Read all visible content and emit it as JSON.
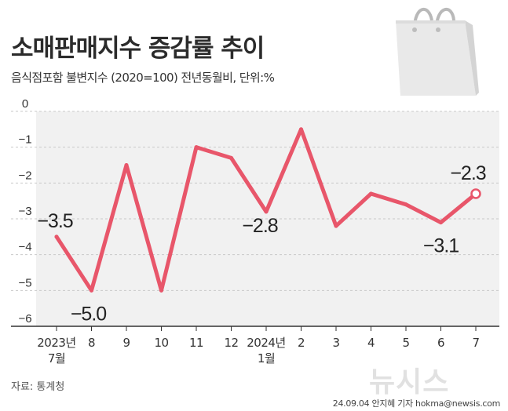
{
  "header": {
    "title": "소매판매지수 증감률 추이",
    "subtitle": "음식점포함 불변지수 (2020=100) 전년동월비, 단위:%"
  },
  "footer": {
    "source": "자료: 통계청",
    "credit": "24.09.04 안지혜 기자 hokma@newsis.com",
    "watermark": "뉴시스"
  },
  "colors": {
    "line": "#e8566a",
    "plot_background": "#f1f1f1",
    "grid": "#c9c9c9",
    "axis": "#333333"
  },
  "icons": {
    "decoration": "shopping-bag-icon"
  },
  "chart_data": {
    "type": "line",
    "title": "소매판매지수 증감률 추이",
    "subtitle": "음식점포함 불변지수 (2020=100) 전년동월비, 단위:%",
    "categories": [
      "2023년 7월",
      "8",
      "9",
      "10",
      "11",
      "12",
      "2024년 1월",
      "2",
      "3",
      "4",
      "5",
      "6",
      "7"
    ],
    "category_lines": [
      [
        "2023년",
        "7월"
      ],
      [
        "8"
      ],
      [
        "9"
      ],
      [
        "10"
      ],
      [
        "11"
      ],
      [
        "12"
      ],
      [
        "2024년",
        "1월"
      ],
      [
        "2"
      ],
      [
        "3"
      ],
      [
        "4"
      ],
      [
        "5"
      ],
      [
        "6"
      ],
      [
        "7"
      ]
    ],
    "series": [
      {
        "values": [
          -3.5,
          -5.0,
          -1.5,
          -5.0,
          -1.0,
          -1.3,
          -2.8,
          -0.5,
          -3.2,
          -2.3,
          -2.6,
          -3.1,
          -2.3
        ]
      }
    ],
    "data_labels": [
      {
        "index": 0,
        "text": "−3.5"
      },
      {
        "index": 1,
        "text": "−5.0"
      },
      {
        "index": 6,
        "text": "−2.8"
      },
      {
        "index": 11,
        "text": "−3.1"
      },
      {
        "index": 12,
        "text": "−2.3"
      }
    ],
    "yticks": [
      0,
      -1,
      -2,
      -3,
      -4,
      -5,
      -6
    ],
    "ytick_labels": [
      "0",
      "−1",
      "−2",
      "−3",
      "−4",
      "−5",
      "−6"
    ],
    "ylim": [
      -6,
      0
    ],
    "xlabel": "",
    "ylabel": "",
    "grid": true,
    "grid_style": "dashed horizontal",
    "last_point_marker": "open circle"
  }
}
